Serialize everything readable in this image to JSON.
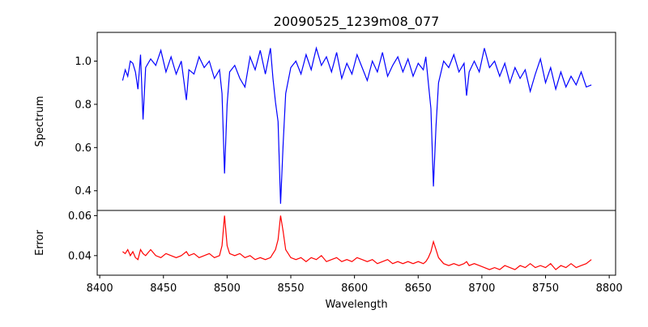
{
  "chart_data": {
    "type": "line",
    "title": "20090525_1239m08_077",
    "xlabel": "Wavelength",
    "xlim": [
      8398,
      8805
    ],
    "xticks": [
      8400,
      8450,
      8500,
      8550,
      8600,
      8650,
      8700,
      8750,
      8800
    ],
    "panels": [
      {
        "name": "spectrum",
        "ylabel": "Spectrum",
        "ylim": [
          0.309,
          1.133
        ],
        "yticks": [
          0.4,
          0.6,
          0.8,
          1.0
        ],
        "ytick_labels": [
          "0.4",
          "0.6",
          "0.8",
          "1.0"
        ],
        "color": "#0000ff"
      },
      {
        "name": "error",
        "ylabel": "Error",
        "ylim": [
          0.0302,
          0.0626
        ],
        "yticks": [
          0.04,
          0.06
        ],
        "ytick_labels": [
          "0.04",
          "0.06"
        ],
        "color": "#ff0000"
      }
    ],
    "x": [
      8418,
      8420,
      8422,
      8424,
      8426,
      8428,
      8430,
      8432,
      8434,
      8436,
      8440,
      8444,
      8448,
      8452,
      8456,
      8460,
      8464,
      8468,
      8470,
      8474,
      8478,
      8482,
      8486,
      8490,
      8494,
      8496,
      8498,
      8500,
      8502,
      8506,
      8510,
      8514,
      8518,
      8522,
      8526,
      8530,
      8534,
      8536,
      8538,
      8540,
      8542,
      8544,
      8546,
      8550,
      8554,
      8558,
      8562,
      8566,
      8570,
      8574,
      8578,
      8582,
      8586,
      8590,
      8594,
      8598,
      8602,
      8606,
      8610,
      8614,
      8618,
      8622,
      8626,
      8630,
      8634,
      8638,
      8642,
      8646,
      8650,
      8654,
      8656,
      8658,
      8660,
      8662,
      8664,
      8666,
      8670,
      8674,
      8678,
      8682,
      8686,
      8688,
      8690,
      8694,
      8698,
      8702,
      8706,
      8710,
      8714,
      8718,
      8722,
      8726,
      8730,
      8734,
      8738,
      8742,
      8746,
      8750,
      8754,
      8758,
      8762,
      8766,
      8770,
      8774,
      8778,
      8782,
      8786
    ],
    "spectrum": [
      0.91,
      0.96,
      0.93,
      1.0,
      0.99,
      0.95,
      0.87,
      1.03,
      0.73,
      0.97,
      1.01,
      0.98,
      1.05,
      0.95,
      1.02,
      0.94,
      1.0,
      0.82,
      0.96,
      0.94,
      1.02,
      0.97,
      1.0,
      0.92,
      0.96,
      0.85,
      0.48,
      0.8,
      0.95,
      0.98,
      0.92,
      0.88,
      1.02,
      0.96,
      1.05,
      0.94,
      1.06,
      0.92,
      0.81,
      0.72,
      0.34,
      0.62,
      0.85,
      0.97,
      1.0,
      0.94,
      1.03,
      0.96,
      1.06,
      0.98,
      1.02,
      0.95,
      1.04,
      0.92,
      0.99,
      0.94,
      1.03,
      0.97,
      0.91,
      1.0,
      0.95,
      1.04,
      0.93,
      0.98,
      1.02,
      0.95,
      1.01,
      0.93,
      0.99,
      0.96,
      1.02,
      0.9,
      0.78,
      0.42,
      0.7,
      0.9,
      1.0,
      0.97,
      1.03,
      0.95,
      0.99,
      0.84,
      0.95,
      1.0,
      0.95,
      1.06,
      0.97,
      1.0,
      0.93,
      0.99,
      0.9,
      0.97,
      0.92,
      0.96,
      0.86,
      0.94,
      1.01,
      0.9,
      0.97,
      0.87,
      0.95,
      0.88,
      0.93,
      0.89,
      0.95,
      0.88,
      0.89
    ],
    "error": [
      0.042,
      0.041,
      0.043,
      0.04,
      0.042,
      0.039,
      0.038,
      0.043,
      0.041,
      0.04,
      0.043,
      0.04,
      0.039,
      0.041,
      0.04,
      0.039,
      0.04,
      0.042,
      0.04,
      0.041,
      0.039,
      0.04,
      0.041,
      0.039,
      0.04,
      0.045,
      0.06,
      0.045,
      0.041,
      0.04,
      0.041,
      0.039,
      0.04,
      0.038,
      0.039,
      0.038,
      0.039,
      0.041,
      0.043,
      0.048,
      0.06,
      0.052,
      0.043,
      0.039,
      0.038,
      0.039,
      0.037,
      0.039,
      0.038,
      0.04,
      0.037,
      0.038,
      0.039,
      0.037,
      0.038,
      0.037,
      0.039,
      0.038,
      0.037,
      0.038,
      0.036,
      0.037,
      0.038,
      0.036,
      0.037,
      0.036,
      0.037,
      0.036,
      0.037,
      0.036,
      0.037,
      0.039,
      0.042,
      0.047,
      0.043,
      0.039,
      0.036,
      0.035,
      0.036,
      0.035,
      0.036,
      0.037,
      0.035,
      0.036,
      0.035,
      0.034,
      0.033,
      0.034,
      0.033,
      0.035,
      0.034,
      0.033,
      0.035,
      0.034,
      0.036,
      0.034,
      0.035,
      0.034,
      0.036,
      0.033,
      0.035,
      0.034,
      0.036,
      0.034,
      0.035,
      0.036,
      0.038
    ]
  }
}
